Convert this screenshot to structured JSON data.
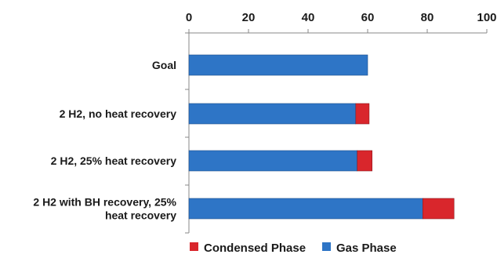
{
  "chart_data": {
    "type": "bar",
    "stacked": true,
    "orientation": "horizontal",
    "x_axis_position": "top",
    "xlim": [
      0,
      100
    ],
    "x_ticks": [
      0,
      20,
      40,
      60,
      80,
      100
    ],
    "categories": [
      [
        "Goal"
      ],
      [
        "2 H2, no heat recovery"
      ],
      [
        "2 H2, 25% heat recovery"
      ],
      [
        "2 H2 with BH recovery, 25%",
        "heat recovery"
      ]
    ],
    "series": [
      {
        "name": "Gas Phase",
        "color": "#2e75c6",
        "values": [
          60,
          56,
          56.5,
          78.5
        ]
      },
      {
        "name": "Condensed Phase",
        "color": "#d9262c",
        "values": [
          0,
          4.5,
          5,
          10.5
        ]
      }
    ],
    "legend": {
      "position": "bottom",
      "order": [
        "Condensed Phase",
        "Gas Phase"
      ]
    },
    "grid": false
  }
}
